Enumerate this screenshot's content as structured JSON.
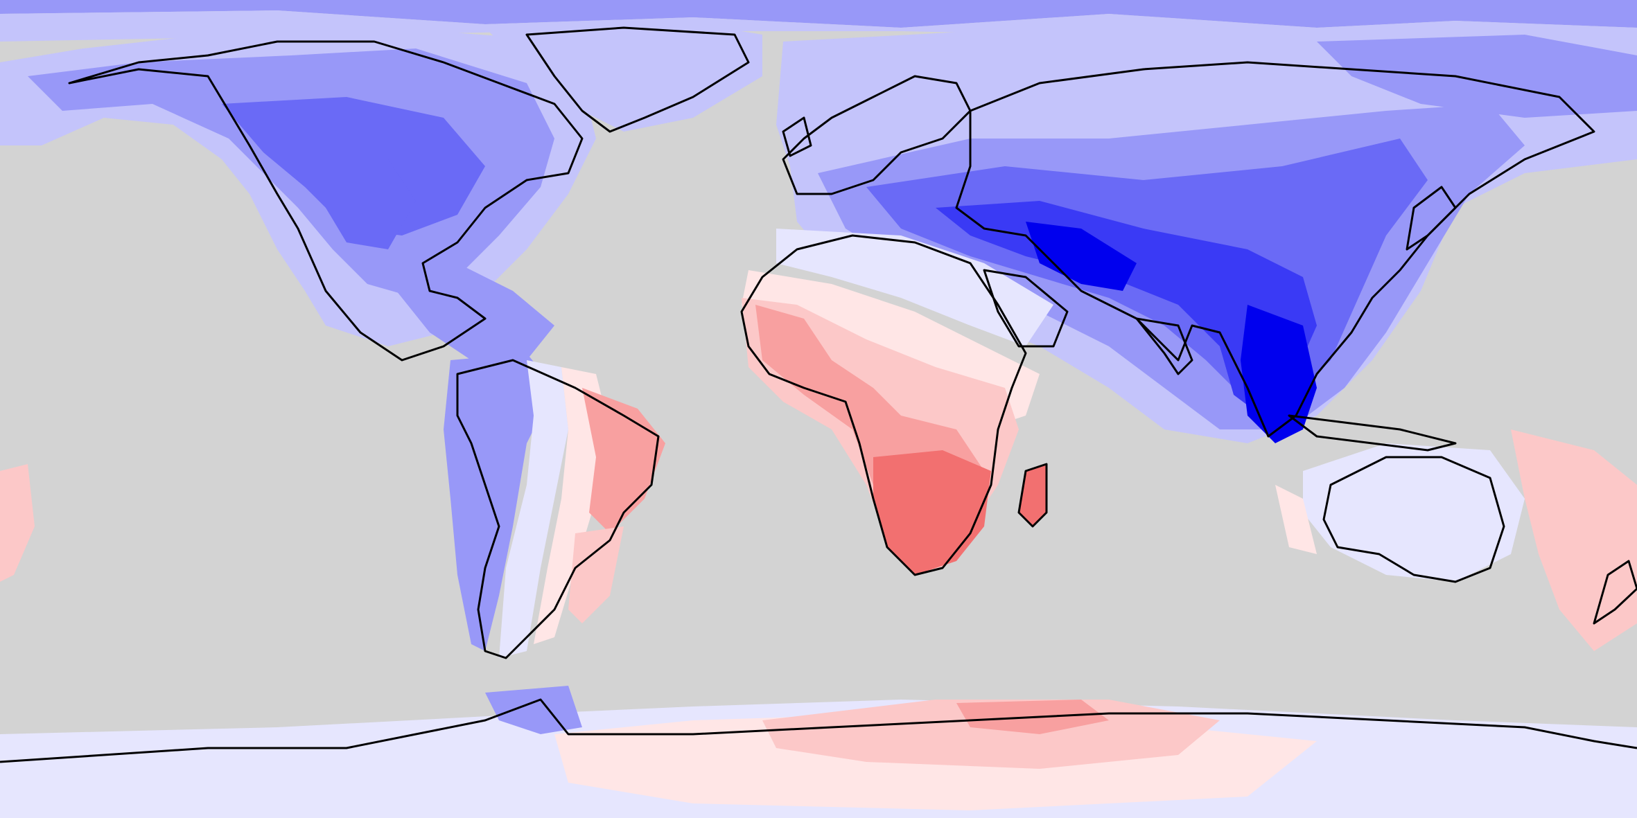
{
  "map": {
    "projection": "equirectangular",
    "background_color": "#d3d3d3",
    "coastline_color": "#000000",
    "palette": {
      "blue_darkest": "#0000ee",
      "blue_dark": "#3a3af5",
      "blue_mid": "#6a6af6",
      "blue_light": "#9898f8",
      "blue_pale": "#c4c4fb",
      "blue_faint": "#e6e6fe",
      "red_faint": "#ffe6e6",
      "red_pale": "#fcc8c8",
      "red_light": "#f8a0a0",
      "red_mid": "#f27070"
    }
  }
}
